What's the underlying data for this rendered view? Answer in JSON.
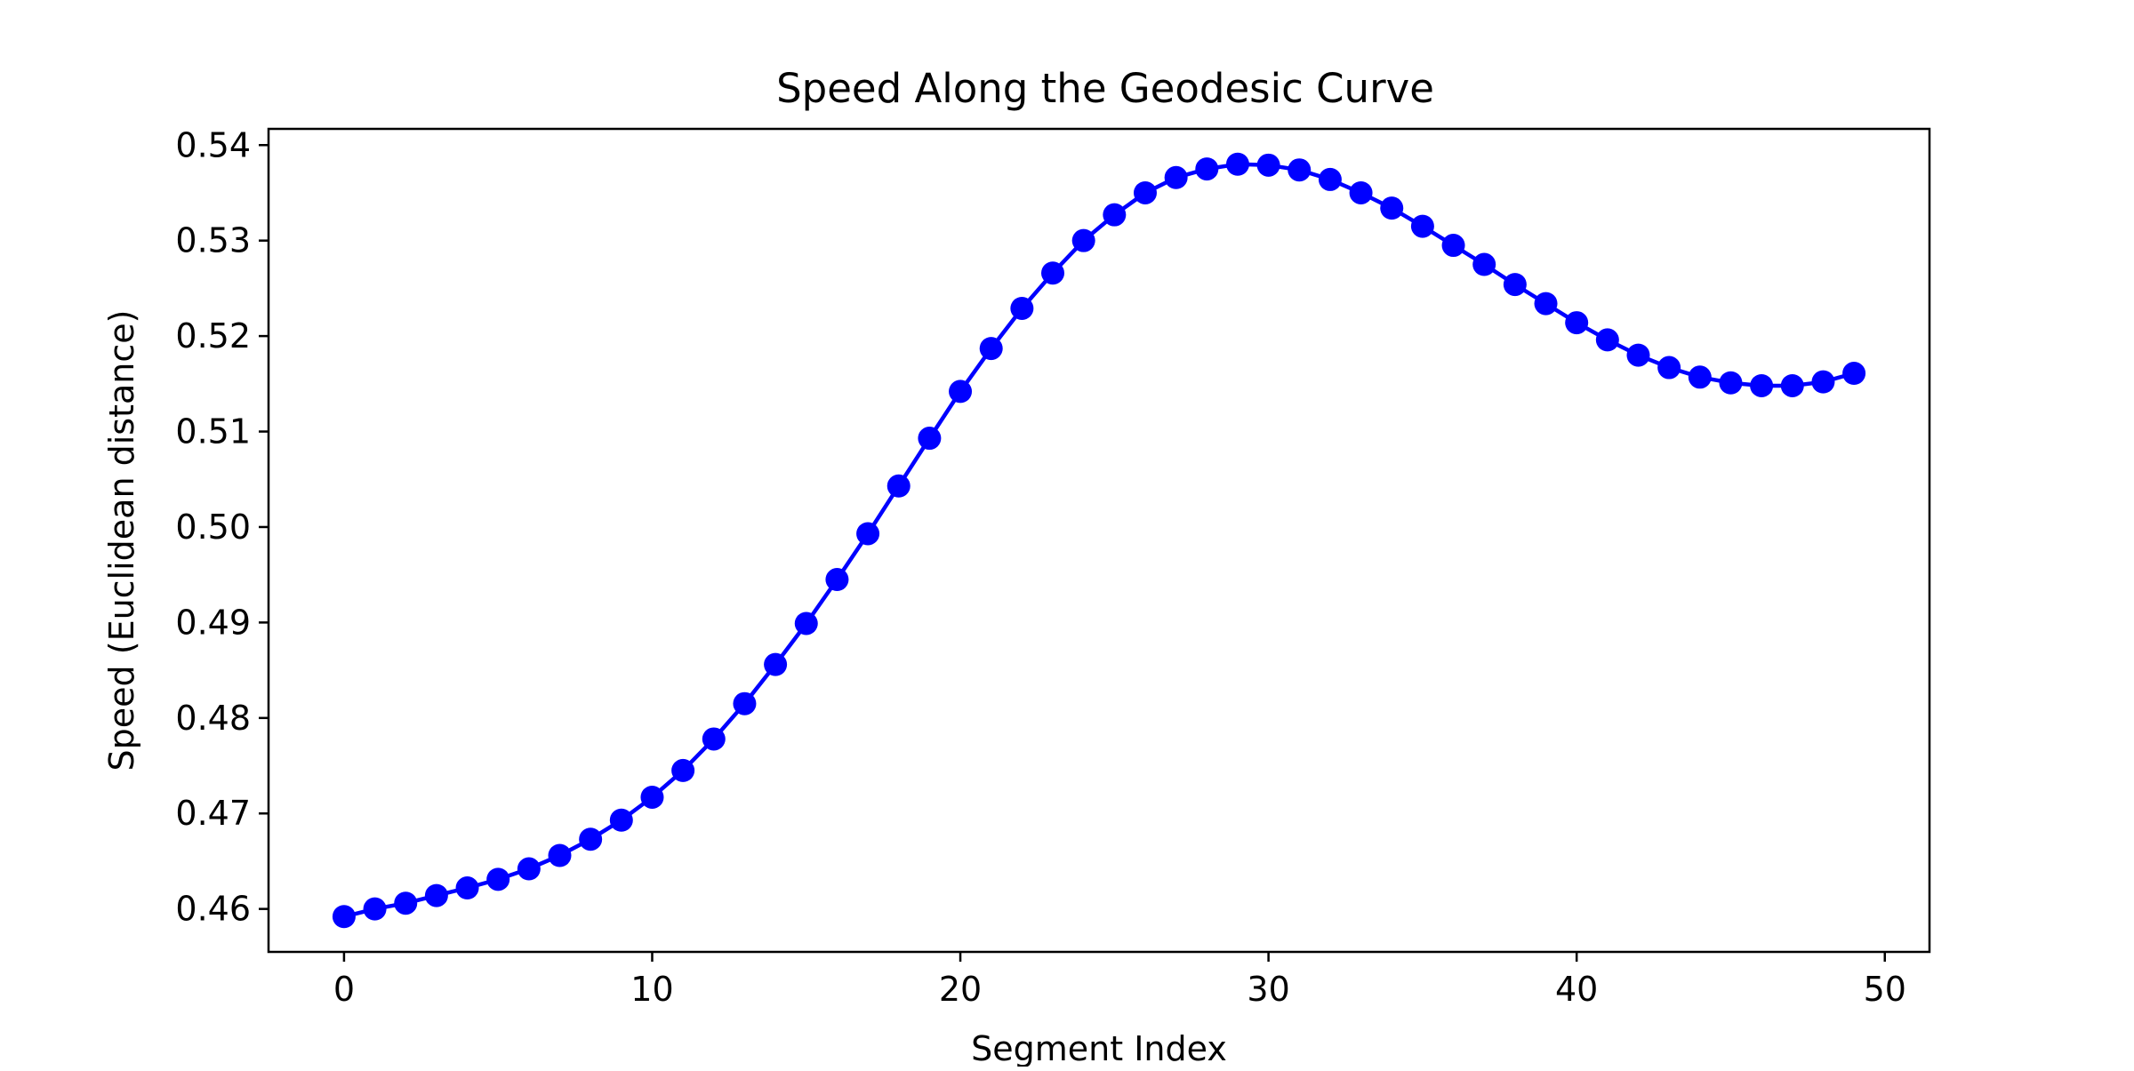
{
  "chart_data": {
    "type": "line",
    "title": "Speed Along the Geodesic Curve",
    "xlabel": "Segment Index",
    "ylabel": "Speed (Euclidean distance)",
    "xlim": [
      -2.45,
      51.45
    ],
    "ylim": [
      0.4555,
      0.5417
    ],
    "x_ticks": [
      0,
      10,
      20,
      30,
      40,
      50
    ],
    "y_ticks": [
      0.46,
      0.47,
      0.48,
      0.49,
      0.5,
      0.51,
      0.52,
      0.53,
      0.54
    ],
    "x_tick_labels": [
      "0",
      "10",
      "20",
      "30",
      "40",
      "50"
    ],
    "y_tick_labels": [
      "0.46",
      "0.47",
      "0.48",
      "0.49",
      "0.50",
      "0.51",
      "0.52",
      "0.53",
      "0.54"
    ],
    "grid": false,
    "legend": false,
    "marker": "circle",
    "color": "#0000ff",
    "series": [
      {
        "x": [
          0,
          1,
          2,
          3,
          4,
          5,
          6,
          7,
          8,
          9,
          10,
          11,
          12,
          13,
          14,
          15,
          16,
          17,
          18,
          19,
          20,
          21,
          22,
          23,
          24,
          25,
          26,
          27,
          28,
          29,
          30,
          31,
          32,
          33,
          34,
          35,
          36,
          37,
          38,
          39,
          40,
          41,
          42,
          43,
          44,
          45,
          46,
          47,
          48,
          49
        ],
        "values": [
          0.4592,
          0.46,
          0.4606,
          0.4614,
          0.4622,
          0.4631,
          0.4642,
          0.4656,
          0.4673,
          0.4693,
          0.4717,
          0.4745,
          0.4778,
          0.4815,
          0.4856,
          0.4899,
          0.4945,
          0.4993,
          0.5043,
          0.5093,
          0.5142,
          0.5187,
          0.5229,
          0.5266,
          0.53,
          0.5327,
          0.535,
          0.5366,
          0.5375,
          0.538,
          0.5379,
          0.5374,
          0.5364,
          0.535,
          0.5334,
          0.5315,
          0.5295,
          0.5275,
          0.5254,
          0.5234,
          0.5214,
          0.5196,
          0.518,
          0.5167,
          0.5157,
          0.5151,
          0.5148,
          0.5148,
          0.5152,
          0.5161
        ]
      }
    ]
  }
}
